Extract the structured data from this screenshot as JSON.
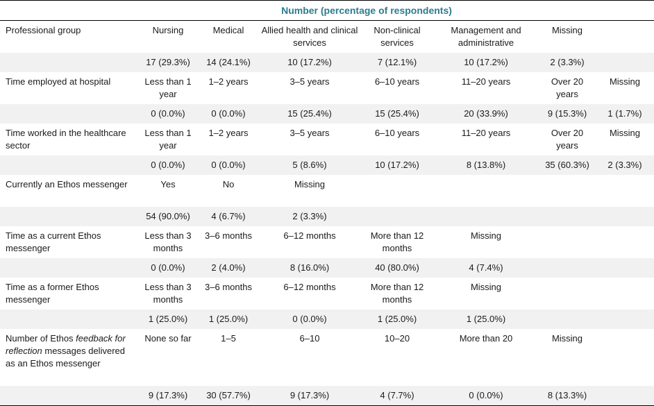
{
  "header": {
    "title": "Number (percentage of respondents)"
  },
  "rows": [
    {
      "label": "Professional group",
      "options": [
        "Nursing",
        "Medical",
        "Allied health and clinical services",
        "Non-clinical services",
        "Management and administrative",
        "Missing",
        ""
      ],
      "values": [
        "17 (29.3%)",
        "14 (24.1%)",
        "10 (17.2%)",
        "7 (12.1%)",
        "10 (17.2%)",
        "2 (3.3%)",
        ""
      ]
    },
    {
      "label": "Time employed at hospital",
      "options": [
        "Less than 1 year",
        "1–2 years",
        "3–5 years",
        "6–10 years",
        "11–20 years",
        "Over 20 years",
        "Missing"
      ],
      "values": [
        "0 (0.0%)",
        "0 (0.0%)",
        "15 (25.4%)",
        "15 (25.4%)",
        "20 (33.9%)",
        "9 (15.3%)",
        "1 (1.7%)"
      ]
    },
    {
      "label": "Time worked in the healthcare sector",
      "options": [
        "Less than 1 year",
        "1–2 years",
        "3–5 years",
        "6–10 years",
        "11–20 years",
        "Over 20 years",
        "Missing"
      ],
      "values": [
        "0 (0.0%)",
        "0 (0.0%)",
        "5 (8.6%)",
        "10 (17.2%)",
        "8 (13.8%)",
        "35 (60.3%)",
        "2 (3.3%)"
      ]
    },
    {
      "label": "Currently an Ethos messenger",
      "options": [
        "Yes",
        "No",
        "Missing",
        "",
        "",
        "",
        ""
      ],
      "values": [
        "54 (90.0%)",
        "4 (6.7%)",
        "2 (3.3%)",
        "",
        "",
        "",
        ""
      ]
    },
    {
      "label": "Time as a current Ethos messenger",
      "options": [
        "Less than 3 months",
        "3–6 months",
        "6–12 months",
        "More than 12 months",
        "Missing",
        "",
        ""
      ],
      "values": [
        "0 (0.0%)",
        "2 (4.0%)",
        "8 (16.0%)",
        "40 (80.0%)",
        "4 (7.4%)",
        "",
        ""
      ]
    },
    {
      "label": "Time as a former Ethos messenger",
      "options": [
        "Less than 3 months",
        "3–6 months",
        "6–12 months",
        "More than 12 months",
        "Missing",
        "",
        ""
      ],
      "values": [
        "1 (25.0%)",
        "1 (25.0%)",
        "0 (0.0%)",
        "1 (25.0%)",
        "1 (25.0%)",
        "",
        ""
      ]
    },
    {
      "label_prefix": "Number of Ethos ",
      "label_italic": "feedback for reflection",
      "label_suffix": " messages delivered as an Ethos messenger",
      "options": [
        "None so far",
        "1–5",
        "6–10",
        "10–20",
        "More than 20",
        "Missing",
        ""
      ],
      "values": [
        "9 (17.3%)",
        "30 (57.7%)",
        "9 (17.3%)",
        "4 (7.7%)",
        "0 (0.0%)",
        "8 (13.3%)",
        ""
      ]
    }
  ]
}
